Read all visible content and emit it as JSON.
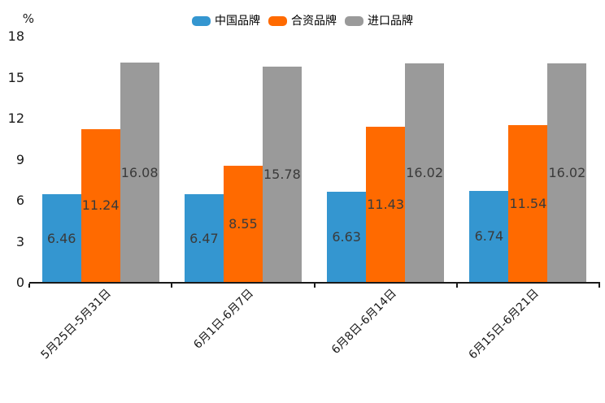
{
  "chart_data": {
    "type": "bar",
    "title": "",
    "unit_label": "%",
    "categories": [
      "5月25日-5月31日",
      "6月1日-6月7日",
      "6月8日-6月14日",
      "6月15日-6月21日"
    ],
    "series": [
      {
        "key": "china-brand",
        "name": "中国品牌",
        "color": "#3496d0",
        "values": [
          6.46,
          6.47,
          6.63,
          6.74
        ]
      },
      {
        "key": "joint-venture-brand",
        "name": "合资品牌",
        "color": "#ff6a00",
        "values": [
          11.24,
          8.55,
          11.43,
          11.54
        ]
      },
      {
        "key": "import-brand",
        "name": "进口品牌",
        "color": "#9a9a9a",
        "values": [
          16.08,
          15.78,
          16.02,
          16.02
        ]
      }
    ],
    "ylim": [
      0,
      18
    ],
    "yticks": [
      0,
      3,
      6,
      9,
      12,
      15,
      18
    ],
    "grid": false,
    "legend_position": "top-center",
    "value_label_position": "inside-center",
    "x_label_rotation_deg": 45
  },
  "colors": {
    "background": "#ffffff",
    "axis": "#1a1a1a",
    "value_label_text": "#3a3a3a"
  }
}
